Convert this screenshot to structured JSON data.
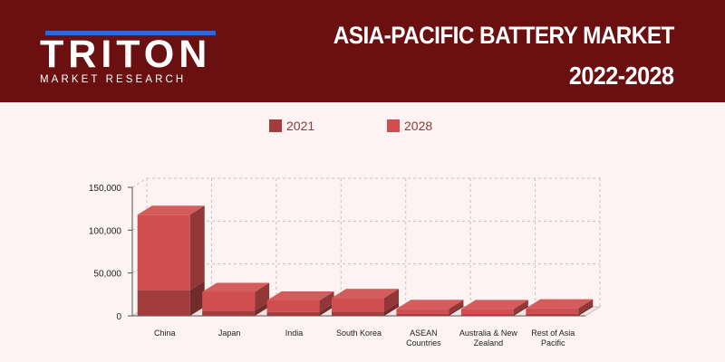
{
  "header": {
    "logo_text": "TRITON",
    "logo_tagline": "MARKET RESEARCH",
    "title_line1": "ASIA-PACIFIC BATTERY MARKET",
    "title_line2": "2022-2028"
  },
  "colors": {
    "header_bg": "#6b1011",
    "logo_accent": "#3566d6",
    "series_2021": "#a23d3d",
    "series_2028": "#d04e4f",
    "background": "#fdf3f3"
  },
  "chart_data": {
    "type": "bar",
    "stacked": true,
    "three_d": true,
    "categories": [
      "China",
      "Japan",
      "India",
      "South Korea",
      "ASEAN Countries",
      "Australia & New Zealand",
      "Rest of Asia Pacific"
    ],
    "category_display": [
      [
        "China"
      ],
      [
        "Japan"
      ],
      [
        "India"
      ],
      [
        "South Korea"
      ],
      [
        "ASEAN",
        "Countries"
      ],
      [
        "Australia & New",
        "Zealand"
      ],
      [
        "Rest of Asia",
        "Pacific"
      ]
    ],
    "series": [
      {
        "name": "2021",
        "color": "#a23d3d",
        "values": [
          30000,
          6000,
          4500,
          5000,
          2200,
          2000,
          2200
        ]
      },
      {
        "name": "2028",
        "color": "#d04e4f",
        "values": [
          88000,
          22000,
          13500,
          16000,
          6000,
          6000,
          6600
        ]
      }
    ],
    "ylim": [
      0,
      150000
    ],
    "yticks": [
      0,
      50000,
      100000,
      150000
    ],
    "ytick_labels": [
      "0",
      "50,000",
      "100,000",
      "150,000"
    ],
    "grid": true,
    "legend_position": "top-center"
  }
}
